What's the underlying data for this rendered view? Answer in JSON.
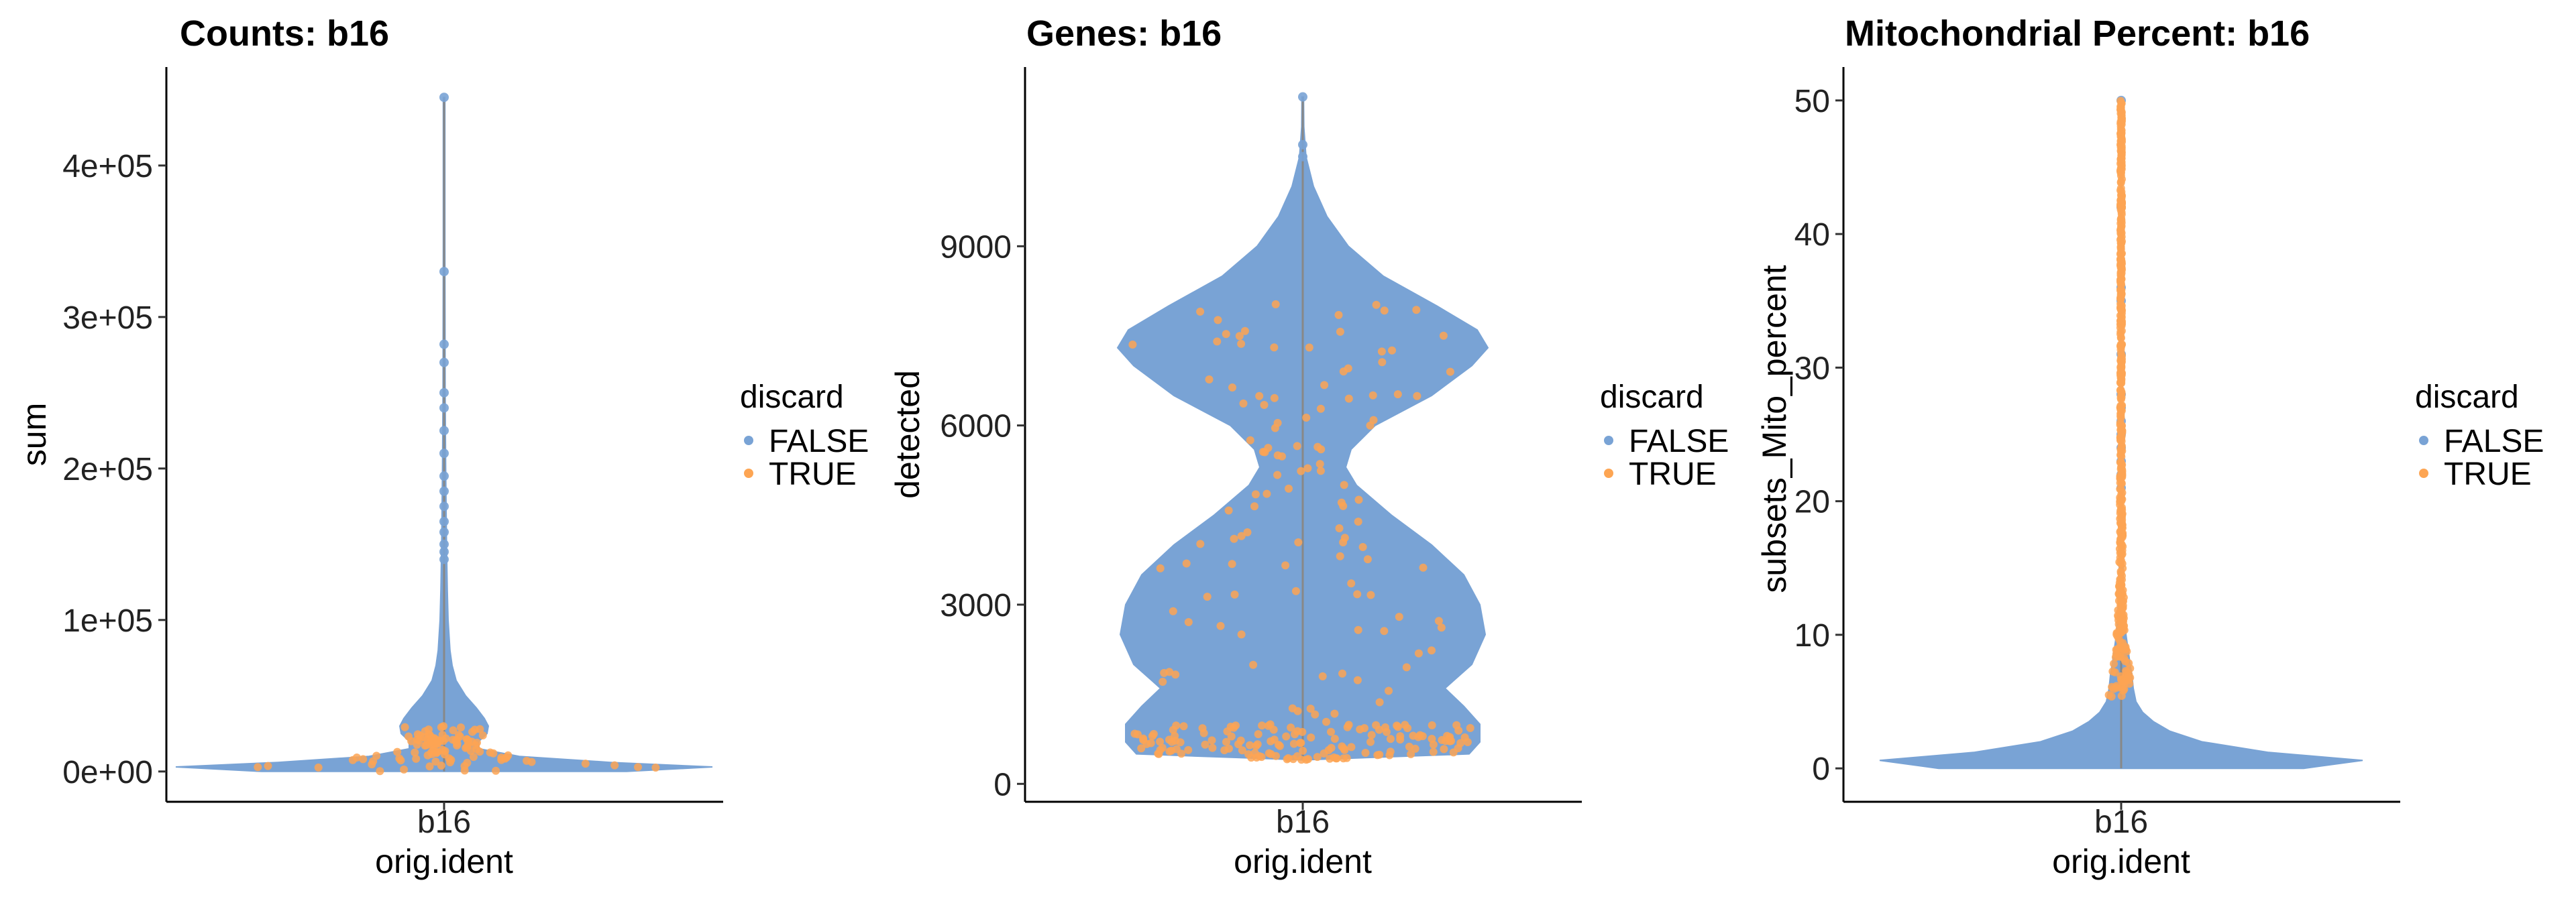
{
  "colors": {
    "FALSE": "#79A3D5",
    "TRUE": "#FDA553"
  },
  "chart_data": [
    {
      "type": "violin",
      "title": "Counts: b16",
      "xlabel": "orig.ident",
      "ylabel": "sum",
      "categories": [
        "b16"
      ],
      "ylim": [
        -20000,
        465000
      ],
      "yticks": [
        0,
        100000,
        200000,
        300000,
        400000
      ],
      "yticklabels": [
        "0e+00",
        "1e+05",
        "2e+05",
        "3e+05",
        "4e+05"
      ],
      "legend": {
        "title": "discard",
        "entries": [
          "FALSE",
          "TRUE"
        ],
        "position": "right"
      },
      "density": [
        [
          0,
          0.68
        ],
        [
          3000,
          1.0
        ],
        [
          6000,
          0.62
        ],
        [
          10000,
          0.28
        ],
        [
          15000,
          0.13
        ],
        [
          20000,
          0.13
        ],
        [
          25000,
          0.16
        ],
        [
          30000,
          0.165
        ],
        [
          35000,
          0.15
        ],
        [
          42000,
          0.12
        ],
        [
          50000,
          0.08
        ],
        [
          60000,
          0.045
        ],
        [
          70000,
          0.03
        ],
        [
          80000,
          0.022
        ],
        [
          100000,
          0.015
        ],
        [
          120000,
          0.012
        ],
        [
          150000,
          0.009
        ],
        [
          200000,
          0.006
        ],
        [
          250000,
          0.004
        ],
        [
          300000,
          0.0035
        ],
        [
          350000,
          0.003
        ],
        [
          400000,
          0.003
        ],
        [
          445000,
          0.003
        ]
      ],
      "max": 445000,
      "outliers": [
        445000,
        330000,
        282000,
        270000,
        250000,
        240000,
        225000,
        210000,
        195000,
        185000,
        175000,
        165000,
        158000,
        150000,
        145000,
        140000
      ],
      "true_range": [
        0,
        30000
      ],
      "true_count": 110
    },
    {
      "type": "violin",
      "title": "Genes: b16",
      "xlabel": "orig.ident",
      "ylabel": "detected",
      "categories": [
        "b16"
      ],
      "ylim": [
        -300,
        12000
      ],
      "yticks": [
        0,
        3000,
        6000,
        9000
      ],
      "yticklabels": [
        "0",
        "3000",
        "6000",
        "9000"
      ],
      "legend": {
        "title": "discard",
        "entries": [
          "FALSE",
          "TRUE"
        ],
        "position": "right"
      },
      "density": [
        [
          400,
          0.0
        ],
        [
          500,
          0.62
        ],
        [
          700,
          0.66
        ],
        [
          1000,
          0.66
        ],
        [
          1300,
          0.6
        ],
        [
          1600,
          0.53
        ],
        [
          2000,
          0.63
        ],
        [
          2500,
          0.68
        ],
        [
          3000,
          0.66
        ],
        [
          3500,
          0.6
        ],
        [
          4000,
          0.48
        ],
        [
          4500,
          0.33
        ],
        [
          5000,
          0.2
        ],
        [
          5300,
          0.16
        ],
        [
          5600,
          0.18
        ],
        [
          6000,
          0.27
        ],
        [
          6500,
          0.48
        ],
        [
          7000,
          0.63
        ],
        [
          7300,
          0.69
        ],
        [
          7600,
          0.65
        ],
        [
          8000,
          0.5
        ],
        [
          8500,
          0.3
        ],
        [
          9000,
          0.17
        ],
        [
          9500,
          0.09
        ],
        [
          10000,
          0.04
        ],
        [
          10500,
          0.012
        ],
        [
          11000,
          0.004
        ],
        [
          11500,
          0.003
        ]
      ],
      "max": 11500,
      "outliers": [
        11500,
        10700,
        10500
      ],
      "true_range": [
        400,
        8200
      ],
      "true_count": 260,
      "true_low_band": [
        400,
        1000
      ]
    },
    {
      "type": "violin",
      "title": "Mitochondrial Percent: b16",
      "xlabel": "orig.ident",
      "ylabel": "subsets_Mito_percent",
      "categories": [
        "b16"
      ],
      "ylim": [
        -2.5,
        52.5
      ],
      "yticks": [
        0,
        10,
        20,
        30,
        40,
        50
      ],
      "yticklabels": [
        "0",
        "10",
        "20",
        "30",
        "40",
        "50"
      ],
      "legend": {
        "title": "discard",
        "entries": [
          "FALSE",
          "TRUE"
        ],
        "position": "right"
      },
      "density": [
        [
          0,
          0.68
        ],
        [
          0.6,
          0.9
        ],
        [
          1.2,
          0.55
        ],
        [
          2.0,
          0.3
        ],
        [
          2.8,
          0.18
        ],
        [
          3.5,
          0.12
        ],
        [
          4.2,
          0.08
        ],
        [
          5.0,
          0.055
        ],
        [
          6.0,
          0.045
        ],
        [
          7.0,
          0.04
        ],
        [
          8.0,
          0.032
        ],
        [
          9.0,
          0.025
        ],
        [
          10.0,
          0.018
        ],
        [
          12.0,
          0.012
        ],
        [
          14.0,
          0.008
        ],
        [
          17.0,
          0.006
        ],
        [
          20.0,
          0.005
        ],
        [
          25.0,
          0.004
        ],
        [
          30.0,
          0.003
        ],
        [
          40.0,
          0.003
        ],
        [
          50.0,
          0.003
        ]
      ],
      "max": 50,
      "outliers": [
        50,
        42,
        36,
        35,
        31,
        28,
        27,
        26,
        25,
        24,
        23,
        22,
        21
      ],
      "true_range": [
        5.3,
        50
      ],
      "true_count": 500
    }
  ]
}
